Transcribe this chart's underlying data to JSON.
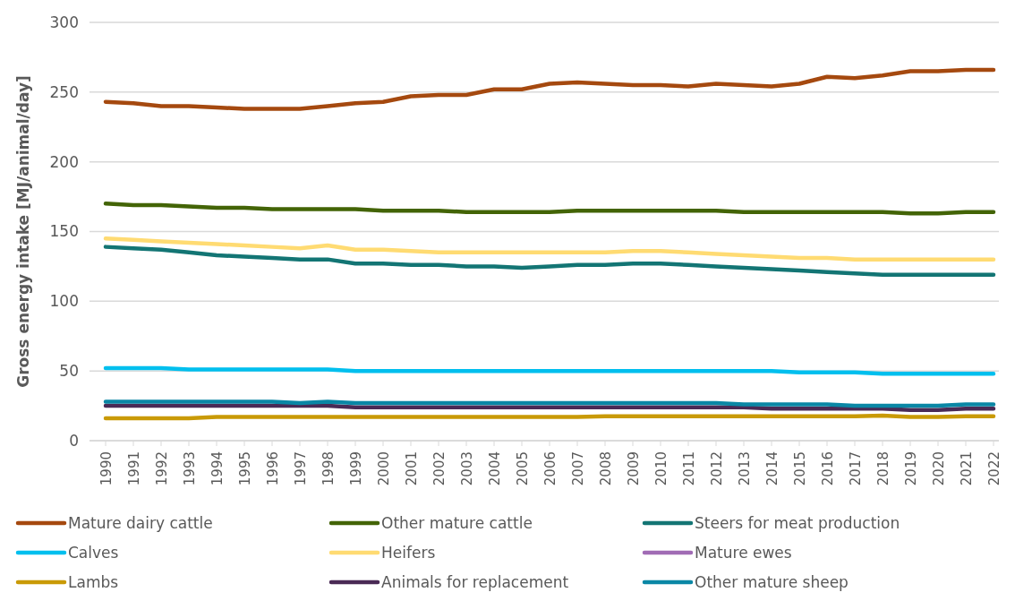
{
  "chart_data": {
    "type": "line",
    "ylabel": "Gross energy intake [MJ/animal/day]",
    "categories": [
      "1990",
      "1991",
      "1992",
      "1993",
      "1994",
      "1995",
      "1996",
      "1997",
      "1998",
      "1999",
      "2000",
      "2001",
      "2002",
      "2003",
      "2004",
      "2005",
      "2006",
      "2007",
      "2008",
      "2009",
      "2010",
      "2011",
      "2012",
      "2013",
      "2014",
      "2015",
      "2016",
      "2017",
      "2018",
      "2019",
      "2020",
      "2021",
      "2022"
    ],
    "ylim": [
      0,
      300
    ],
    "yticks": [
      0,
      50,
      100,
      150,
      200,
      250,
      300
    ],
    "grid": "y",
    "legend": "bottom",
    "marker": "none",
    "line_style": "solid",
    "series": [
      {
        "name": "Mature dairy cattle",
        "color": "#a5490f",
        "values": [
          243,
          242,
          240,
          240,
          239,
          238,
          238,
          238,
          240,
          242,
          243,
          247,
          248,
          248,
          252,
          252,
          256,
          257,
          256,
          255,
          255,
          254,
          256,
          255,
          254,
          256,
          261,
          260,
          262,
          265,
          265,
          266,
          266
        ]
      },
      {
        "name": "Other mature cattle",
        "color": "#436406",
        "values": [
          170,
          169,
          169,
          168,
          167,
          167,
          166,
          166,
          166,
          166,
          165,
          165,
          165,
          164,
          164,
          164,
          164,
          165,
          165,
          165,
          165,
          165,
          165,
          164,
          164,
          164,
          164,
          164,
          164,
          163,
          163,
          164,
          164
        ]
      },
      {
        "name": "Steers for meat production",
        "color": "#137574",
        "values": [
          139,
          138,
          137,
          135,
          133,
          132,
          131,
          130,
          130,
          127,
          127,
          126,
          126,
          125,
          125,
          124,
          125,
          126,
          126,
          127,
          127,
          126,
          125,
          124,
          123,
          122,
          121,
          120,
          119,
          119,
          119,
          119,
          119
        ]
      },
      {
        "name": "Calves",
        "color": "#00bfee",
        "values": [
          52,
          52,
          52,
          51,
          51,
          51,
          51,
          51,
          51,
          50,
          50,
          50,
          50,
          50,
          50,
          50,
          50,
          50,
          50,
          50,
          50,
          50,
          50,
          50,
          50,
          49,
          49,
          49,
          48,
          48,
          48,
          48,
          48
        ]
      },
      {
        "name": "Heifers",
        "color": "#ffdb72",
        "values": [
          145,
          144,
          143,
          142,
          141,
          140,
          139,
          138,
          140,
          137,
          137,
          136,
          135,
          135,
          135,
          135,
          135,
          135,
          135,
          136,
          136,
          135,
          134,
          133,
          132,
          131,
          131,
          130,
          130,
          130,
          130,
          130,
          130
        ]
      },
      {
        "name": "Mature ewes",
        "color": "#a16cb5",
        "values": [
          null,
          null,
          null,
          null,
          null,
          null,
          null,
          null,
          null,
          null,
          null,
          null,
          null,
          null,
          null,
          null,
          null,
          null,
          null,
          null,
          null,
          null,
          null,
          null,
          null,
          null,
          null,
          null,
          null,
          null,
          null,
          null,
          null
        ]
      },
      {
        "name": "Lambs",
        "color": "#c99a06",
        "values": [
          16,
          16,
          16,
          16,
          17,
          17,
          17,
          17,
          17,
          17,
          17,
          17,
          17,
          17,
          17,
          17,
          17,
          17,
          17.5,
          17.5,
          17.5,
          17.5,
          17.5,
          17.5,
          17.5,
          17.5,
          17.5,
          17.5,
          18,
          17,
          17,
          17.5,
          17.5
        ]
      },
      {
        "name": "Animals for replacement",
        "color": "#4a2a55",
        "values": [
          25,
          25,
          25,
          25,
          25,
          25,
          25,
          25,
          25,
          24,
          24,
          24,
          24,
          24,
          24,
          24,
          24,
          24,
          24,
          24,
          24,
          24,
          24,
          24,
          23,
          23,
          23,
          23,
          23,
          22,
          22,
          23,
          23
        ]
      },
      {
        "name": "Other mature sheep",
        "color": "#0a87a5",
        "values": [
          28,
          28,
          28,
          28,
          28,
          28,
          28,
          27,
          28,
          27,
          27,
          27,
          27,
          27,
          27,
          27,
          27,
          27,
          27,
          27,
          27,
          27,
          27,
          26,
          26,
          26,
          26,
          25,
          25,
          25,
          25,
          26,
          26
        ]
      }
    ]
  }
}
